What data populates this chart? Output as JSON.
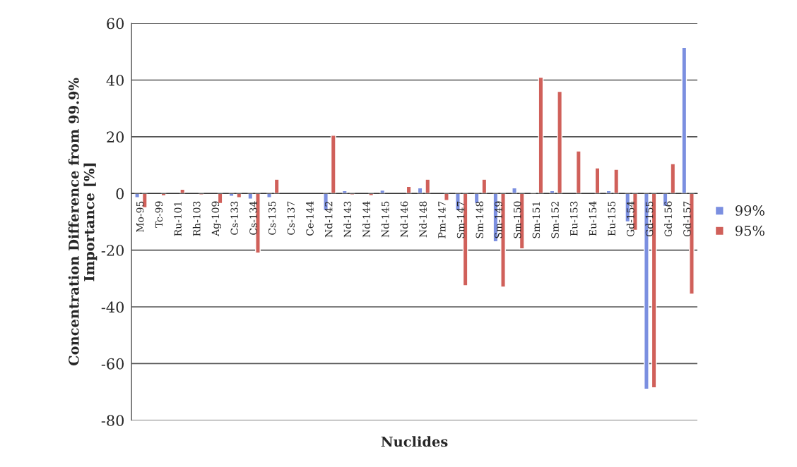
{
  "chart_data": {
    "type": "bar",
    "xlabel": "Nuclides",
    "ylabel": "Concentration Difference from 99.9%\nImportance [%]",
    "categories": [
      "Mo-95",
      "Tc-99",
      "Ru-101",
      "Rh-103",
      "Ag-109",
      "Cs-133",
      "Cs-134",
      "Cs-135",
      "Cs-137",
      "Ce-144",
      "Nd-142",
      "Nd-143",
      "Nd-144",
      "Nd-145",
      "Nd-146",
      "Nd-148",
      "Pm-147",
      "Sm-147",
      "Sm-148",
      "Sm-149",
      "Sm-150",
      "Sm-151",
      "Sm-152",
      "Eu-153",
      "Eu-154",
      "Eu-155",
      "Gd-154",
      "Gd-155",
      "Gd-156",
      "Gd-157"
    ],
    "series": [
      {
        "name": "99%",
        "color": "#7b8fe0",
        "values": [
          -1.5,
          null,
          null,
          null,
          null,
          -1,
          -2,
          -1.5,
          null,
          null,
          -6,
          1,
          null,
          1.2,
          null,
          2,
          null,
          -6,
          -3.5,
          -17,
          2,
          0.3,
          1,
          null,
          null,
          1,
          -10,
          -69,
          -4.5,
          51.5
        ]
      },
      {
        "name": "95%",
        "color": "#d0605a",
        "values": [
          -5,
          -0.8,
          1.5,
          -0.5,
          -3.5,
          -1.5,
          -21,
          5,
          null,
          null,
          20.5,
          -0.5,
          -0.7,
          null,
          2.5,
          5,
          -2.5,
          -32.5,
          5,
          -33,
          -19.5,
          41,
          36,
          15,
          9,
          8.5,
          -13,
          -68.5,
          10.5,
          -35.5
        ]
      }
    ],
    "ylim": [
      -80,
      60
    ],
    "yticks": [
      -80,
      -60,
      -40,
      -20,
      0,
      20,
      40,
      60
    ],
    "grid": "y",
    "legend": "right"
  }
}
